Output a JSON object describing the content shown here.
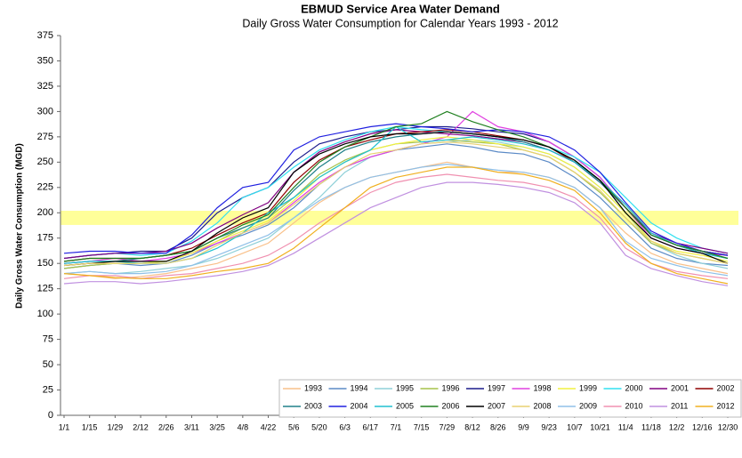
{
  "chart_data": {
    "type": "line",
    "title": "EBMUD Service Area Water Demand",
    "subtitle": "Daily Gross Water Consumption for Calendar Years 1993 - 2012",
    "y_label": "Daily Gross Water Consumption (MGD)",
    "categories": [
      "1/1",
      "1/15",
      "1/29",
      "2/12",
      "2/26",
      "3/11",
      "3/25",
      "4/8",
      "4/22",
      "5/6",
      "5/20",
      "6/3",
      "6/17",
      "7/1",
      "7/15",
      "7/29",
      "8/12",
      "8/26",
      "9/9",
      "9/23",
      "10/7",
      "10/21",
      "11/4",
      "11/18",
      "12/2",
      "12/16",
      "12/30"
    ],
    "ylim": [
      0,
      375
    ],
    "yticks": [
      0,
      25,
      50,
      75,
      100,
      125,
      150,
      175,
      200,
      225,
      250,
      275,
      300,
      325,
      350,
      375
    ],
    "grid": false,
    "legend": "bottom-right",
    "highlight_band": {
      "range": [
        188,
        202
      ],
      "color": "#ffff99"
    },
    "series": [
      {
        "name": "1993",
        "color": "#f9c08a",
        "values": [
          140,
          138,
          135,
          137,
          140,
          145,
          150,
          160,
          170,
          190,
          210,
          225,
          235,
          240,
          245,
          250,
          245,
          240,
          240,
          235,
          225,
          205,
          180,
          160,
          150,
          145,
          140
        ]
      },
      {
        "name": "1994",
        "color": "#5b8ac6",
        "values": [
          145,
          148,
          150,
          148,
          150,
          158,
          170,
          178,
          188,
          205,
          228,
          245,
          255,
          262,
          265,
          268,
          265,
          260,
          258,
          250,
          235,
          215,
          190,
          165,
          155,
          150,
          148
        ]
      },
      {
        "name": "1995",
        "color": "#8fd0d8",
        "values": [
          140,
          142,
          140,
          142,
          145,
          148,
          155,
          165,
          175,
          195,
          215,
          240,
          255,
          262,
          268,
          270,
          272,
          270,
          265,
          258,
          245,
          225,
          200,
          170,
          158,
          150,
          145
        ]
      },
      {
        "name": "1996",
        "color": "#a6c24a",
        "values": [
          145,
          148,
          150,
          150,
          152,
          160,
          172,
          185,
          195,
          215,
          238,
          252,
          262,
          268,
          270,
          272,
          270,
          268,
          262,
          255,
          240,
          220,
          195,
          170,
          160,
          155,
          150
        ]
      },
      {
        "name": "1997",
        "color": "#1c1c8c",
        "values": [
          155,
          158,
          160,
          162,
          162,
          175,
          200,
          215,
          225,
          250,
          268,
          275,
          280,
          282,
          285,
          285,
          283,
          280,
          278,
          270,
          255,
          235,
          205,
          178,
          168,
          162,
          158
        ]
      },
      {
        "name": "1998",
        "color": "#e040e0",
        "values": [
          150,
          152,
          155,
          152,
          155,
          160,
          170,
          180,
          190,
          210,
          230,
          245,
          255,
          262,
          268,
          275,
          300,
          285,
          280,
          270,
          255,
          235,
          205,
          175,
          165,
          160,
          158
        ]
      },
      {
        "name": "1999",
        "color": "#f0f040",
        "values": [
          148,
          150,
          150,
          150,
          152,
          160,
          172,
          182,
          192,
          212,
          235,
          250,
          262,
          268,
          272,
          275,
          272,
          268,
          265,
          258,
          245,
          225,
          200,
          172,
          162,
          158,
          152
        ]
      },
      {
        "name": "2000",
        "color": "#30e0f0",
        "values": [
          155,
          158,
          160,
          158,
          160,
          172,
          190,
          215,
          225,
          245,
          262,
          272,
          280,
          285,
          282,
          280,
          278,
          275,
          272,
          265,
          255,
          240,
          215,
          190,
          175,
          165,
          160
        ]
      },
      {
        "name": "2001",
        "color": "#800080",
        "values": [
          155,
          158,
          160,
          160,
          162,
          170,
          185,
          198,
          210,
          240,
          260,
          270,
          278,
          282,
          280,
          278,
          276,
          273,
          270,
          262,
          250,
          230,
          205,
          180,
          170,
          165,
          160
        ]
      },
      {
        "name": "2002",
        "color": "#900000",
        "values": [
          152,
          155,
          155,
          155,
          158,
          165,
          178,
          190,
          200,
          230,
          252,
          265,
          272,
          278,
          280,
          282,
          280,
          276,
          272,
          265,
          250,
          232,
          205,
          178,
          168,
          162,
          158
        ]
      },
      {
        "name": "2003",
        "color": "#20808a",
        "values": [
          150,
          152,
          152,
          155,
          158,
          162,
          175,
          185,
          195,
          222,
          245,
          262,
          270,
          275,
          278,
          280,
          278,
          275,
          270,
          262,
          250,
          230,
          205,
          178,
          168,
          160,
          155
        ]
      },
      {
        "name": "2004",
        "color": "#2020e0",
        "values": [
          160,
          162,
          162,
          160,
          160,
          178,
          205,
          225,
          230,
          262,
          275,
          280,
          285,
          288,
          285,
          283,
          280,
          282,
          280,
          275,
          262,
          240,
          210,
          182,
          170,
          162,
          158
        ]
      },
      {
        "name": "2005",
        "color": "#20c0d0",
        "values": [
          150,
          152,
          152,
          150,
          150,
          155,
          165,
          180,
          200,
          215,
          235,
          250,
          262,
          285,
          270,
          272,
          275,
          272,
          268,
          262,
          250,
          232,
          208,
          180,
          168,
          160,
          155
        ]
      },
      {
        "name": "2006",
        "color": "#208020",
        "values": [
          152,
          155,
          155,
          155,
          158,
          162,
          175,
          188,
          198,
          225,
          250,
          265,
          275,
          285,
          288,
          300,
          290,
          282,
          275,
          265,
          252,
          232,
          205,
          178,
          168,
          162,
          155
        ]
      },
      {
        "name": "2007",
        "color": "#000000",
        "values": [
          148,
          150,
          152,
          152,
          152,
          162,
          180,
          195,
          205,
          240,
          258,
          268,
          275,
          278,
          278,
          280,
          278,
          275,
          272,
          265,
          252,
          232,
          200,
          175,
          165,
          160,
          150
        ]
      },
      {
        "name": "2008",
        "color": "#e8d070",
        "values": [
          148,
          150,
          150,
          150,
          150,
          155,
          168,
          180,
          190,
          208,
          228,
          245,
          258,
          262,
          268,
          270,
          268,
          265,
          262,
          255,
          240,
          222,
          195,
          172,
          160,
          155,
          150
        ]
      },
      {
        "name": "2009",
        "color": "#90c0e8",
        "values": [
          140,
          142,
          140,
          140,
          142,
          148,
          158,
          168,
          178,
          195,
          212,
          225,
          235,
          240,
          245,
          248,
          245,
          242,
          240,
          235,
          225,
          205,
          172,
          155,
          148,
          142,
          138
        ]
      },
      {
        "name": "2010",
        "color": "#f090b0",
        "values": [
          135,
          138,
          138,
          135,
          138,
          140,
          145,
          150,
          158,
          172,
          190,
          205,
          220,
          230,
          235,
          238,
          235,
          232,
          230,
          225,
          215,
          195,
          165,
          150,
          142,
          138,
          135
        ]
      },
      {
        "name": "2011",
        "color": "#c090e0",
        "values": [
          130,
          132,
          132,
          130,
          132,
          135,
          138,
          142,
          148,
          160,
          175,
          190,
          205,
          215,
          225,
          230,
          230,
          228,
          225,
          220,
          210,
          190,
          158,
          145,
          138,
          132,
          128
        ]
      },
      {
        "name": "2012",
        "color": "#f0b020",
        "values": [
          140,
          138,
          136,
          135,
          135,
          138,
          142,
          145,
          150,
          165,
          185,
          205,
          225,
          235,
          240,
          245,
          245,
          240,
          238,
          232,
          222,
          200,
          170,
          150,
          140,
          135,
          130
        ]
      }
    ]
  }
}
